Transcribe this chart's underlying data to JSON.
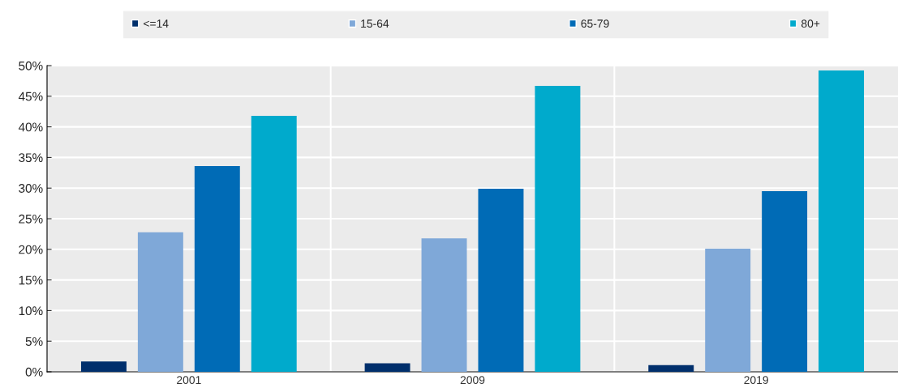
{
  "chart_data": {
    "type": "bar",
    "categories": [
      "2001",
      "2009",
      "2019"
    ],
    "series": [
      {
        "name": "<=14",
        "color": "#002f6c",
        "values": [
          1.7,
          1.4,
          1.1
        ]
      },
      {
        "name": "15-64",
        "color": "#7fa8d8",
        "values": [
          22.8,
          21.8,
          20.1
        ]
      },
      {
        "name": "65-79",
        "color": "#006bb6",
        "values": [
          33.6,
          29.9,
          29.5
        ]
      },
      {
        "name": "80+",
        "color": "#00aacc",
        "values": [
          41.8,
          46.7,
          49.2
        ]
      }
    ],
    "ylim": [
      0,
      50
    ],
    "yticks": [
      {
        "value": 0,
        "label": "0%"
      },
      {
        "value": 5,
        "label": "5%"
      },
      {
        "value": 10,
        "label": "10%"
      },
      {
        "value": 15,
        "label": "15%"
      },
      {
        "value": 20,
        "label": "20%"
      },
      {
        "value": 25,
        "label": "25%"
      },
      {
        "value": 30,
        "label": "30%"
      },
      {
        "value": 35,
        "label": "35%"
      },
      {
        "value": 40,
        "label": "40%"
      },
      {
        "value": 45,
        "label": "45%"
      },
      {
        "value": 50,
        "label": "50%"
      }
    ],
    "grid": true,
    "legend": "top"
  }
}
